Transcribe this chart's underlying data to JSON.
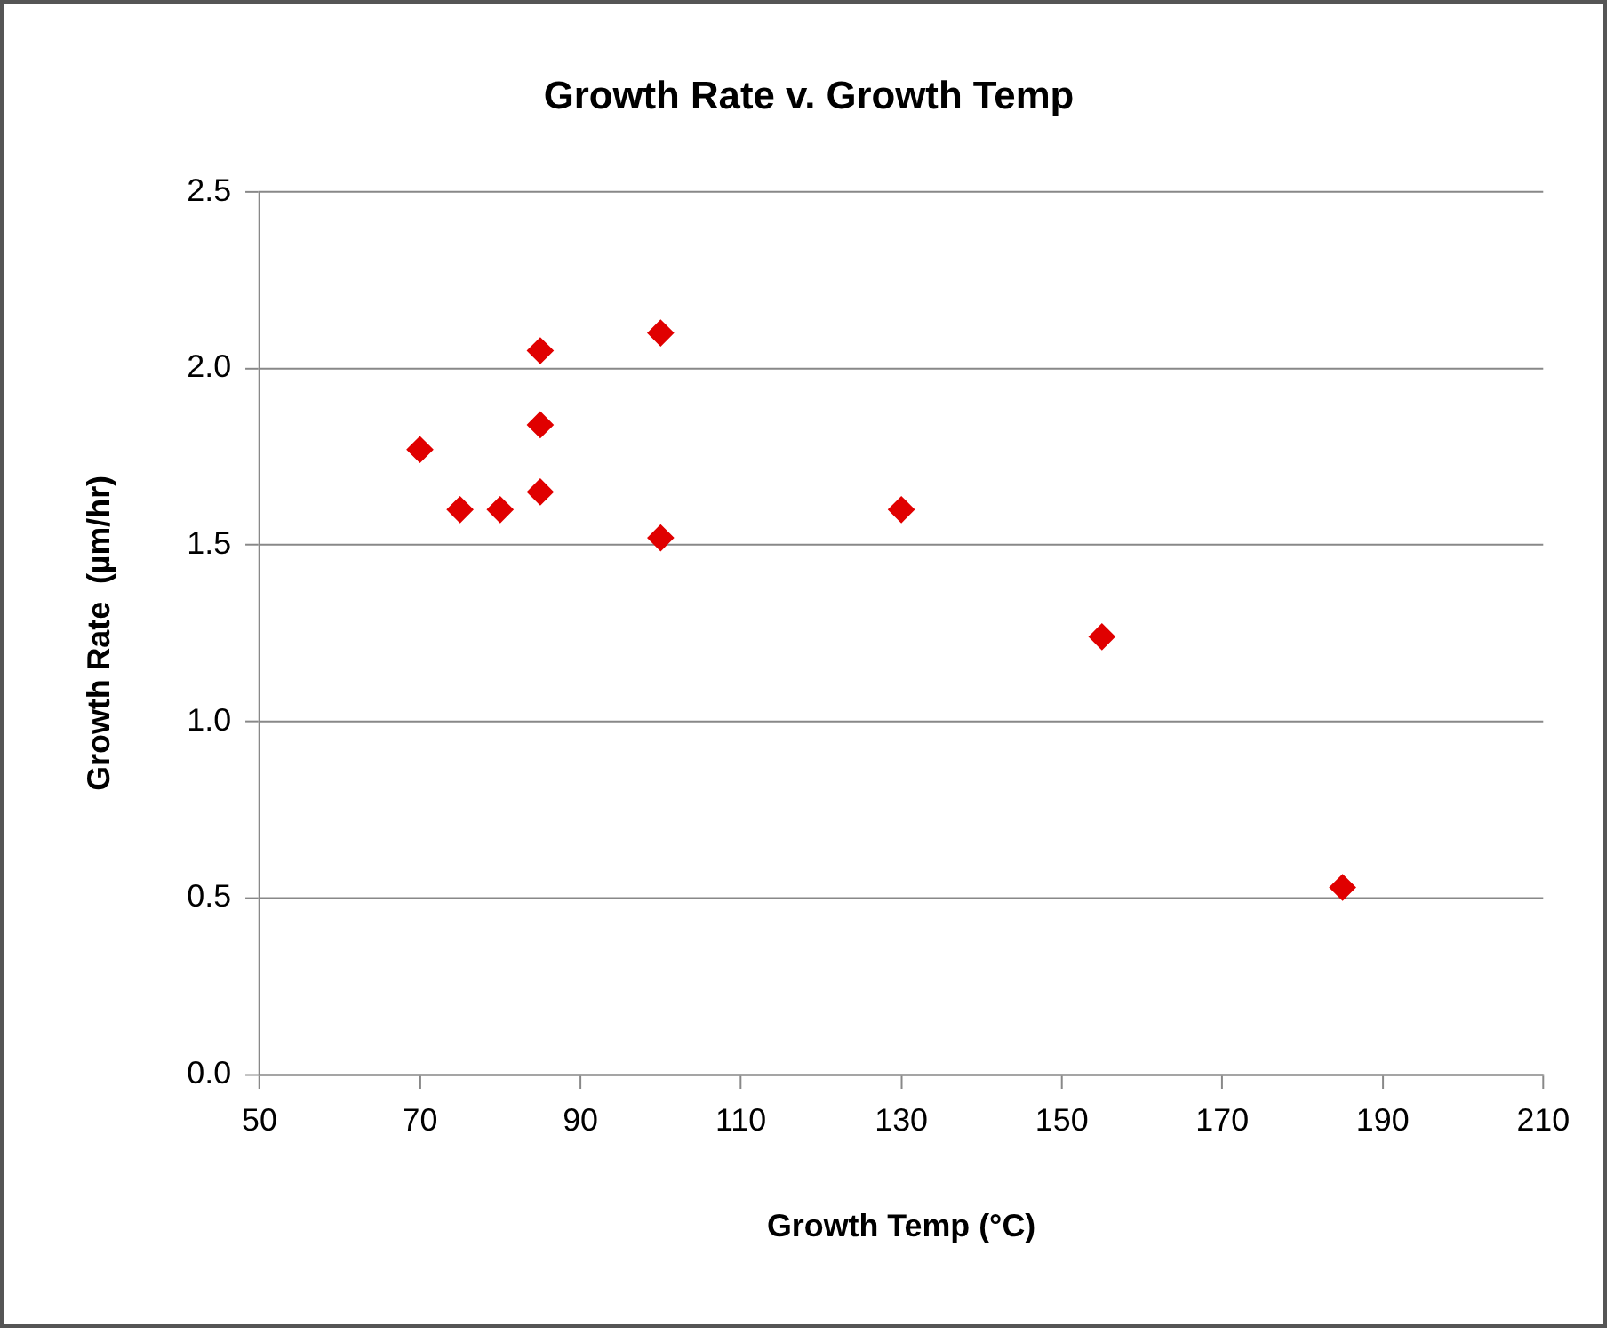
{
  "chart_data": {
    "type": "scatter",
    "title": "Growth Rate v. Growth Temp",
    "xlabel": "Growth Temp (°C)",
    "ylabel": "Growth Rate  (µm/hr)",
    "series": [
      {
        "color": "#e00000",
        "x": [
          70,
          75,
          80,
          85,
          85,
          85,
          100,
          100,
          130,
          155,
          185
        ],
        "values": [
          1.77,
          1.6,
          1.6,
          2.05,
          1.84,
          1.65,
          2.1,
          1.52,
          1.6,
          1.24,
          0.53
        ]
      }
    ],
    "xlim": [
      50,
      210
    ],
    "xticks": [
      50,
      70,
      90,
      110,
      130,
      150,
      170,
      190,
      210
    ],
    "ylim": [
      0,
      2.5
    ],
    "yticks": [
      {
        "value": 0,
        "label": "0.0"
      },
      {
        "value": 0.5,
        "label": "0.5"
      },
      {
        "value": 1,
        "label": "1.0"
      },
      {
        "value": 1.5,
        "label": "1.5"
      },
      {
        "value": 2,
        "label": "2.0"
      },
      {
        "value": 2.5,
        "label": "2.5"
      }
    ],
    "grid": "y",
    "legend": false,
    "marker": "diamond"
  }
}
